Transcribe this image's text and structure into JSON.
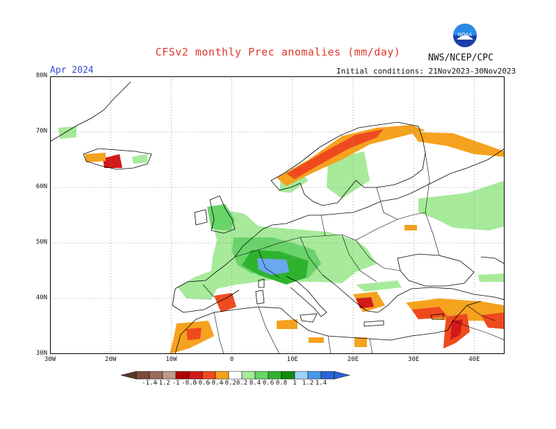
{
  "header": {
    "title": "CFSv2 monthly Prec anomalies (mm/day)",
    "agency": "NWS/NCEP/CPC",
    "logo_text": "NOAA",
    "month": "Apr 2024",
    "init_conditions": "Initial conditions: 21Nov2023-30Nov2023"
  },
  "map": {
    "lat_labels": [
      "80N",
      "70N",
      "60N",
      "50N",
      "40N",
      "30N"
    ],
    "lon_labels": [
      "30W",
      "20W",
      "10W",
      "0",
      "10E",
      "20E",
      "30E",
      "40E"
    ],
    "lon_range": [
      -30,
      45
    ],
    "lat_range": [
      30,
      80
    ],
    "gridlines": "dotted"
  },
  "colorbar": {
    "ticks": [
      "-1.4",
      "-1.2",
      "-1",
      "-0.8",
      "-0.6",
      "-0.4",
      "-0.2",
      "0.2",
      "0.4",
      "0.6",
      "0.8",
      "1",
      "1.2",
      "1.4"
    ],
    "colors": [
      "#7a4a3a",
      "#9c6a5a",
      "#c29a8a",
      "#b00000",
      "#d21a1a",
      "#ef4a1e",
      "#f5a21e",
      "#ffffff",
      "#a6ea9a",
      "#6ad36a",
      "#2fb32f",
      "#128a12",
      "#9fd2f5",
      "#4a98e8",
      "#2a64d8"
    ]
  }
}
